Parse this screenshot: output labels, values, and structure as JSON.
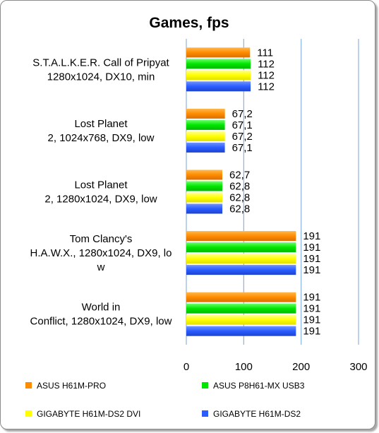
{
  "chart_data": {
    "type": "bar",
    "orientation": "horizontal",
    "title": "Games, fps",
    "xlim": [
      0,
      300
    ],
    "xticks": [
      0,
      100,
      200,
      300
    ],
    "grid": true,
    "legend_position": "bottom",
    "categories": [
      [
        "S.T.A.L.K.E.R. Call of Pripyat",
        "1280x1024, DX10, min"
      ],
      [
        "Lost Planet",
        "2, 1024x768, DX9, low"
      ],
      [
        "Lost Planet",
        "2, 1280x1024, DX9, low"
      ],
      [
        "Tom Clancy's",
        "H.A.W.X., 1280x1024, DX9, lo",
        "w"
      ],
      [
        "World in",
        "Conflict, 1280x1024, DX9, low"
      ]
    ],
    "series": [
      {
        "name": "ASUS H61M-PRO",
        "color": "#ff8c00",
        "values": [
          111,
          67.2,
          62.7,
          191,
          191
        ],
        "labels": [
          "111",
          "67,2",
          "62,7",
          "191",
          "191"
        ]
      },
      {
        "name": "ASUS P8H61-MX USB3",
        "color": "#00e600",
        "values": [
          112,
          67.1,
          62.8,
          191,
          191
        ],
        "labels": [
          "112",
          "67,1",
          "62,8",
          "191",
          "191"
        ]
      },
      {
        "name": "GIGABYTE H61M-DS2 DVI",
        "color": "#ffff00",
        "values": [
          112,
          67.2,
          62.8,
          191,
          191
        ],
        "labels": [
          "112",
          "67,2",
          "62,8",
          "191",
          "191"
        ]
      },
      {
        "name": "GIGABYTE H61M-DS2",
        "color": "#2a5cff",
        "values": [
          112,
          67.1,
          62.8,
          191,
          191
        ],
        "labels": [
          "112",
          "67,1",
          "62,8",
          "191",
          "191"
        ]
      }
    ]
  }
}
